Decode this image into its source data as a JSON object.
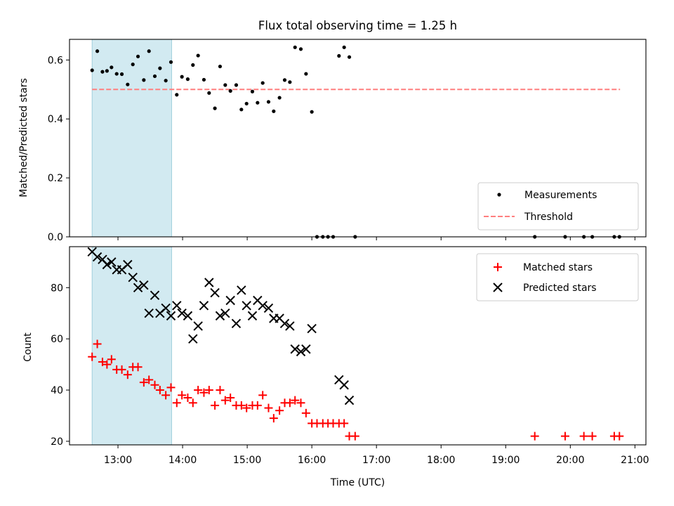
{
  "chart_data": [
    {
      "type": "scatter",
      "title": "Flux total observing time = 1.25 h",
      "xlabel": "",
      "ylabel": "Matched/Predicted stars",
      "ylim": [
        0,
        0.67
      ],
      "yticks": [
        "0.0",
        "0.2",
        "0.4",
        "0.6"
      ],
      "ytick_values": [
        0.0,
        0.2,
        0.4,
        0.6
      ],
      "xlim_hours": [
        12.25,
        21.17
      ],
      "xticks_hours": [
        13,
        14,
        15,
        16,
        17,
        18,
        19,
        20,
        21
      ],
      "observing_window_hours": [
        12.6,
        13.83
      ],
      "colors": {
        "window": "#add8e6",
        "measurements": "#000000",
        "threshold": "#ff7f7f"
      },
      "legend_placement": "lower right",
      "threshold": {
        "name": "Threshold",
        "value": 0.5,
        "x_range_hours": [
          12.6,
          20.77
        ]
      },
      "series": [
        {
          "name": "Measurements",
          "x_hours": [
            12.6,
            12.68,
            12.76,
            12.83,
            12.9,
            12.98,
            13.06,
            13.15,
            13.23,
            13.31,
            13.4,
            13.48,
            13.57,
            13.65,
            13.74,
            13.82,
            13.91,
            13.99,
            14.08,
            14.16,
            14.24,
            14.33,
            14.41,
            14.5,
            14.58,
            14.66,
            14.74,
            14.83,
            14.91,
            14.99,
            15.08,
            15.16,
            15.24,
            15.33,
            15.41,
            15.5,
            15.58,
            15.66,
            15.74,
            15.83,
            15.91,
            16.0,
            16.08,
            16.17,
            16.25,
            16.33,
            16.42,
            16.5,
            16.58,
            16.67,
            19.45,
            19.92,
            20.21,
            20.34,
            20.68,
            20.76
          ],
          "y": [
            0.565,
            0.63,
            0.56,
            0.563,
            0.575,
            0.553,
            0.552,
            0.517,
            0.585,
            0.612,
            0.532,
            0.63,
            0.545,
            0.572,
            0.53,
            0.593,
            0.482,
            0.543,
            0.535,
            0.583,
            0.615,
            0.533,
            0.488,
            0.436,
            0.578,
            0.515,
            0.495,
            0.515,
            0.432,
            0.452,
            0.493,
            0.455,
            0.522,
            0.458,
            0.426,
            0.472,
            0.532,
            0.525,
            0.643,
            0.637,
            0.553,
            0.424,
            0.0,
            0.0,
            0.0,
            0.0,
            0.614,
            0.643,
            0.61,
            0.0,
            0.0,
            0.0,
            0.0,
            0.0,
            0.0,
            0.0
          ]
        }
      ]
    },
    {
      "type": "scatter",
      "title": "",
      "xlabel": "Time (UTC)",
      "ylabel": "Count",
      "ylim": [
        18.6,
        96
      ],
      "yticks": [
        "20",
        "40",
        "60",
        "80"
      ],
      "ytick_values": [
        20,
        40,
        60,
        80
      ],
      "xlim_hours": [
        12.25,
        21.17
      ],
      "xticks": [
        "13:00",
        "14:00",
        "15:00",
        "16:00",
        "17:00",
        "18:00",
        "19:00",
        "20:00",
        "21:00"
      ],
      "xticks_hours": [
        13,
        14,
        15,
        16,
        17,
        18,
        19,
        20,
        21
      ],
      "observing_window_hours": [
        12.6,
        13.83
      ],
      "colors": {
        "window": "#add8e6",
        "matched": "#ff0000",
        "predicted": "#000000"
      },
      "legend_placement": "upper right",
      "series": [
        {
          "name": "Matched stars",
          "marker": "+",
          "x_hours": [
            12.6,
            12.68,
            12.76,
            12.83,
            12.9,
            12.98,
            13.06,
            13.15,
            13.23,
            13.31,
            13.4,
            13.48,
            13.57,
            13.65,
            13.74,
            13.82,
            13.91,
            13.99,
            14.08,
            14.16,
            14.24,
            14.33,
            14.41,
            14.5,
            14.58,
            14.66,
            14.74,
            14.83,
            14.91,
            14.99,
            15.08,
            15.16,
            15.24,
            15.33,
            15.41,
            15.5,
            15.58,
            15.66,
            15.74,
            15.83,
            15.91,
            16.0,
            16.08,
            16.17,
            16.25,
            16.33,
            16.42,
            16.5,
            16.58,
            16.67,
            19.45,
            19.92,
            20.21,
            20.34,
            20.68,
            20.76
          ],
          "y": [
            53,
            58,
            51,
            50,
            52,
            48,
            48,
            46,
            49,
            49,
            43,
            44,
            42,
            40,
            38,
            41,
            35,
            38,
            37,
            35,
            40,
            39,
            40,
            34,
            40,
            36,
            37,
            34,
            34,
            33,
            34,
            34,
            38,
            33,
            29,
            32,
            35,
            35,
            36,
            35,
            31,
            27,
            27,
            27,
            27,
            27,
            27,
            27,
            22,
            22,
            22,
            22,
            22,
            22,
            22,
            22
          ]
        },
        {
          "name": "Predicted stars",
          "marker": "x",
          "x_hours": [
            12.6,
            12.68,
            12.76,
            12.83,
            12.9,
            12.98,
            13.06,
            13.15,
            13.23,
            13.31,
            13.4,
            13.48,
            13.57,
            13.65,
            13.74,
            13.82,
            13.91,
            13.99,
            14.08,
            14.16,
            14.24,
            14.33,
            14.41,
            14.5,
            14.58,
            14.66,
            14.74,
            14.83,
            14.91,
            14.99,
            15.08,
            15.16,
            15.24,
            15.33,
            15.41,
            15.5,
            15.58,
            15.66,
            15.74,
            15.83,
            15.91,
            16.0,
            16.42,
            16.5,
            16.58
          ],
          "y": [
            94,
            92,
            91,
            89,
            90,
            87,
            87,
            89,
            84,
            80,
            81,
            70,
            77,
            70,
            72,
            69,
            73,
            70,
            69,
            60,
            65,
            73,
            82,
            78,
            69,
            70,
            75,
            66,
            79,
            73,
            69,
            75,
            73,
            72,
            68,
            68,
            66,
            65,
            56,
            55,
            56,
            64,
            44,
            42,
            36
          ]
        }
      ]
    }
  ]
}
